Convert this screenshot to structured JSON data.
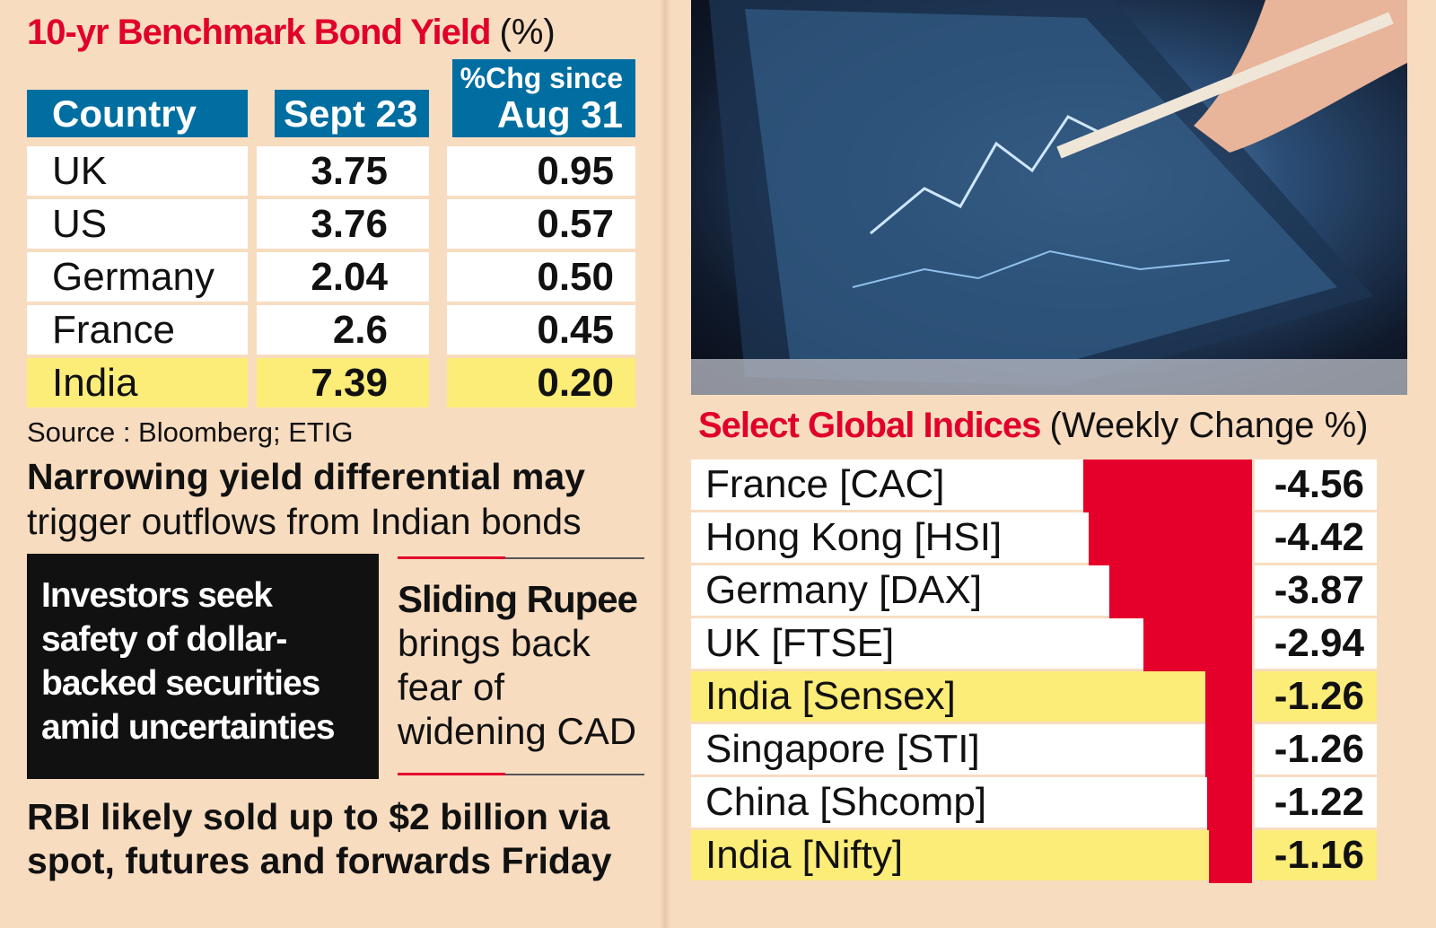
{
  "bond_table": {
    "title": "10-yr Benchmark Bond Yield",
    "title_unit": "(%)",
    "headers": [
      "Country",
      "Sept 23",
      "%Chg since",
      "Aug 31"
    ],
    "rows": [
      {
        "country": "UK",
        "sept23": "3.75",
        "chg": "0.95",
        "highlight": false
      },
      {
        "country": "US",
        "sept23": "3.76",
        "chg": "0.57",
        "highlight": false
      },
      {
        "country": "Germany",
        "sept23": "2.04",
        "chg": "0.50",
        "highlight": false
      },
      {
        "country": "France",
        "sept23": "2.6",
        "chg": "0.45",
        "highlight": false
      },
      {
        "country": "India",
        "sept23": "7.39",
        "chg": "0.20",
        "highlight": true
      }
    ],
    "source": "Source : Bloomberg; ETIG"
  },
  "headline": {
    "bold": "Narrowing yield differential may",
    "regular": "trigger outflows from Indian bonds"
  },
  "box_black": [
    "Investors seek",
    "safety of dollar-",
    "backed securities",
    "amid uncertainties"
  ],
  "box_rupee": {
    "bold": "Sliding Rupee",
    "lines": [
      "brings back",
      "fear of",
      "widening CAD"
    ]
  },
  "footer": [
    "RBI likely sold up to $2 billion via",
    "spot, futures and forwards Friday"
  ],
  "colors": {
    "accent_red": "#e4002b",
    "header_blue": "#006ea0",
    "highlight_yellow": "#fcec78",
    "background": "#f8dcc0"
  },
  "photo": {
    "description_icon": "tablet-stock-chart-photo"
  },
  "chart_data": {
    "type": "bar",
    "orientation": "horizontal",
    "title": "Select Global Indices",
    "subtitle": "(Weekly Change %)",
    "categories": [
      "France [CAC]",
      "Hong Kong [HSI]",
      "Germany [DAX]",
      "UK [FTSE]",
      "India [Sensex]",
      "Singapore [STI]",
      "China [Shcomp]",
      "India [Nifty]"
    ],
    "values": [
      -4.56,
      -4.42,
      -3.87,
      -2.94,
      -1.26,
      -1.26,
      -1.22,
      -1.16
    ],
    "labels": [
      "-4.56",
      "-4.42",
      "-3.87",
      "-2.94",
      "-1.26",
      "-1.26",
      "-1.22",
      "-1.16"
    ],
    "highlighted": [
      "India [Sensex]",
      "India [Nifty]"
    ],
    "grid": false
  }
}
